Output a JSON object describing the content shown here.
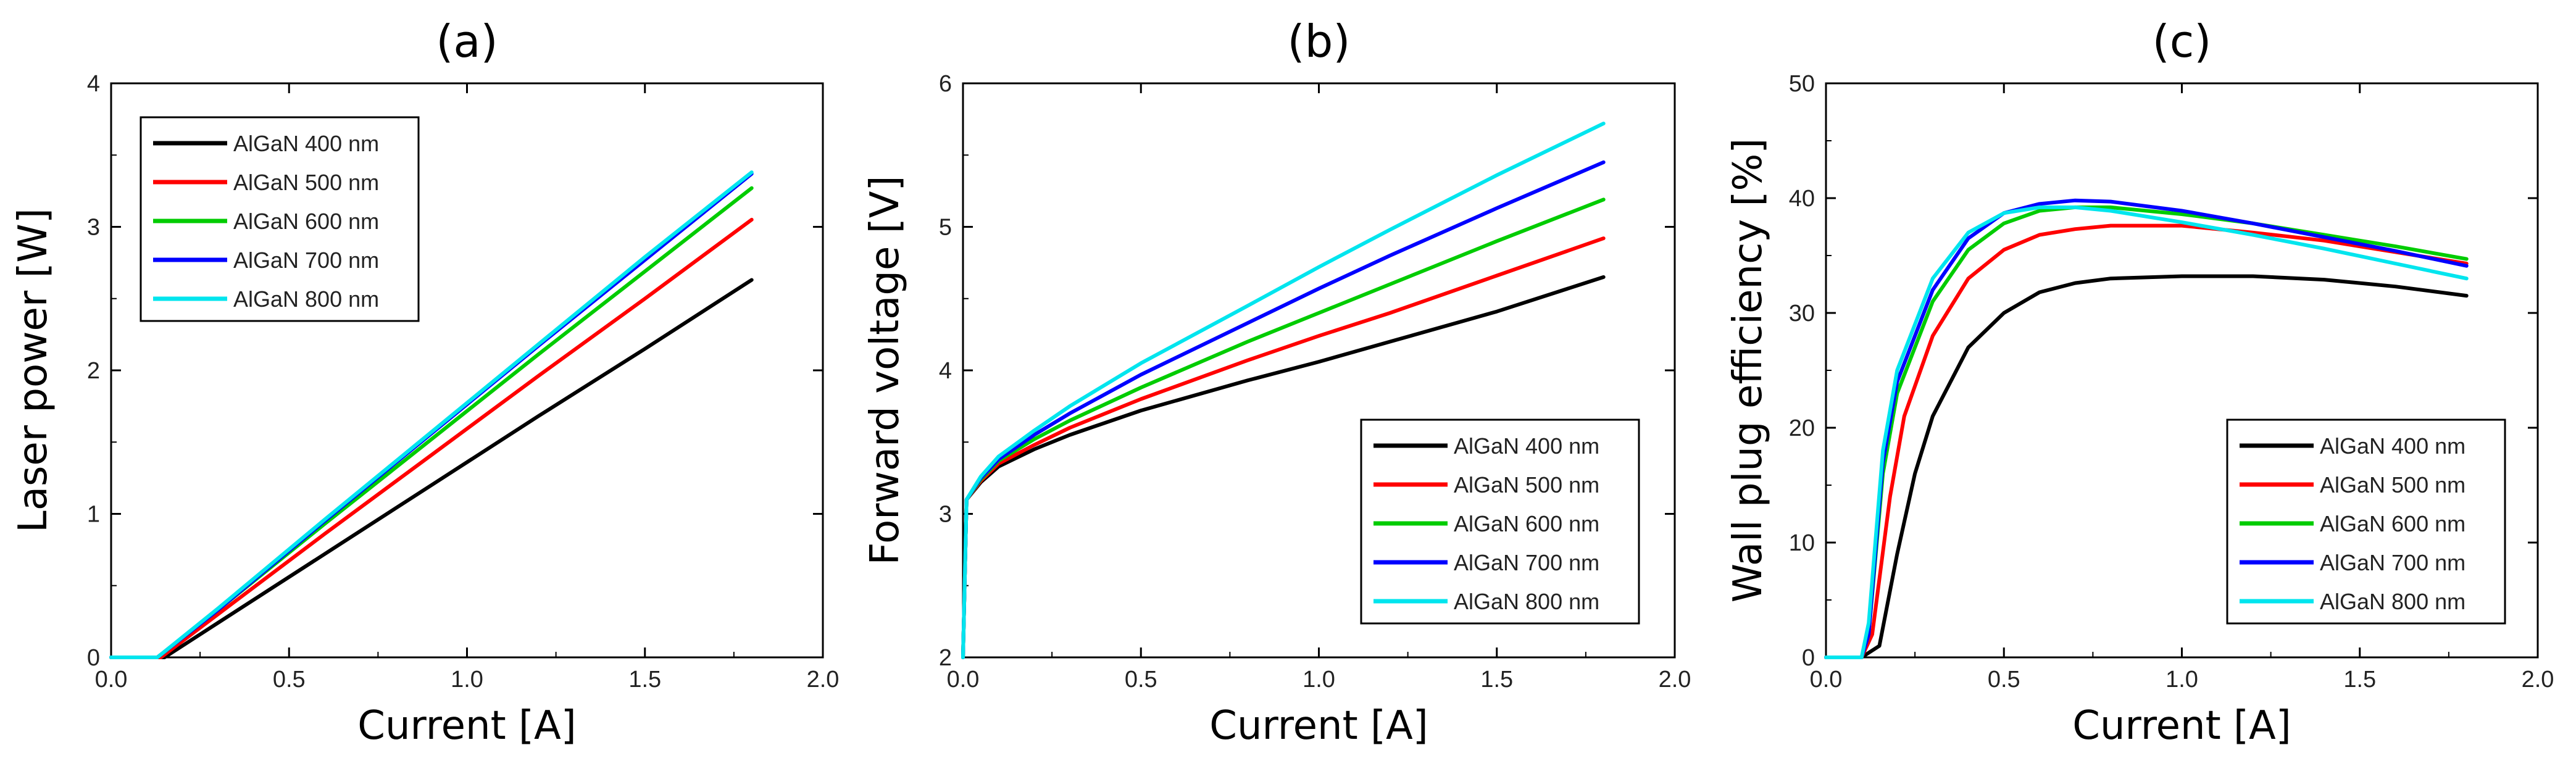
{
  "chart_data": [
    {
      "type": "line",
      "title": "(a)",
      "xlabel": "Current [A]",
      "ylabel": "Laser power [W]",
      "xlim": [
        0,
        2
      ],
      "ylim": [
        0,
        4
      ],
      "xticks": [
        0,
        0.5,
        1,
        1.5,
        2
      ],
      "xtick_labels": [
        "0.0",
        "0.5",
        "1.0",
        "1.5",
        "2.0"
      ],
      "yticks": [
        0,
        1,
        2,
        3,
        4
      ],
      "ytick_labels": [
        "0",
        "1",
        "2",
        "3",
        "4"
      ],
      "legend_position": "top-left",
      "series": [
        {
          "name": "AlGaN 400 nm",
          "color": "#000000",
          "x": [
            0,
            0.15,
            0.3,
            0.6,
            0.9,
            1.2,
            1.5,
            1.8
          ],
          "y": [
            0,
            0,
            0.24,
            0.72,
            1.2,
            1.68,
            2.15,
            2.63
          ]
        },
        {
          "name": "AlGaN 500 nm",
          "color": "#ff0000",
          "x": [
            0,
            0.14,
            0.3,
            0.6,
            0.9,
            1.2,
            1.5,
            1.8
          ],
          "y": [
            0,
            0,
            0.3,
            0.86,
            1.41,
            1.96,
            2.5,
            3.05
          ]
        },
        {
          "name": "AlGaN 600 nm",
          "color": "#00cc00",
          "x": [
            0,
            0.13,
            0.3,
            0.6,
            0.9,
            1.2,
            1.5,
            1.8
          ],
          "y": [
            0,
            0,
            0.33,
            0.93,
            1.52,
            2.11,
            2.69,
            3.27
          ]
        },
        {
          "name": "AlGaN 700 nm",
          "color": "#0000ff",
          "x": [
            0,
            0.13,
            0.3,
            0.6,
            0.9,
            1.2,
            1.5,
            1.8
          ],
          "y": [
            0,
            0,
            0.33,
            0.95,
            1.56,
            2.17,
            2.77,
            3.37
          ]
        },
        {
          "name": "AlGaN 800 nm",
          "color": "#00e5ee",
          "x": [
            0,
            0.13,
            0.3,
            0.6,
            0.9,
            1.2,
            1.5,
            1.8
          ],
          "y": [
            0,
            0,
            0.34,
            0.96,
            1.57,
            2.18,
            2.79,
            3.38
          ]
        }
      ]
    },
    {
      "type": "line",
      "title": "(b)",
      "xlabel": "Current [A]",
      "ylabel": "Forward voltage [V]",
      "xlim": [
        0,
        2
      ],
      "ylim": [
        2,
        6
      ],
      "xticks": [
        0,
        0.5,
        1,
        1.5,
        2
      ],
      "xtick_labels": [
        "0.0",
        "0.5",
        "1.0",
        "1.5",
        "2.0"
      ],
      "yticks": [
        2,
        3,
        4,
        5,
        6
      ],
      "ytick_labels": [
        "2",
        "3",
        "4",
        "5",
        "6"
      ],
      "legend_position": "bottom-right",
      "series": [
        {
          "name": "AlGaN 400 nm",
          "color": "#000000",
          "x": [
            0,
            0.01,
            0.05,
            0.1,
            0.2,
            0.3,
            0.5,
            0.8,
            1.0,
            1.2,
            1.5,
            1.8
          ],
          "y": [
            2,
            3.1,
            3.22,
            3.33,
            3.45,
            3.55,
            3.72,
            3.93,
            4.06,
            4.2,
            4.41,
            4.65
          ]
        },
        {
          "name": "AlGaN 500 nm",
          "color": "#ff0000",
          "x": [
            0,
            0.01,
            0.05,
            0.1,
            0.2,
            0.3,
            0.5,
            0.8,
            1.0,
            1.2,
            1.5,
            1.8
          ],
          "y": [
            2,
            3.1,
            3.23,
            3.35,
            3.48,
            3.6,
            3.8,
            4.07,
            4.24,
            4.4,
            4.66,
            4.92
          ]
        },
        {
          "name": "AlGaN 600 nm",
          "color": "#00cc00",
          "x": [
            0,
            0.01,
            0.05,
            0.1,
            0.2,
            0.3,
            0.5,
            0.8,
            1.0,
            1.2,
            1.5,
            1.8
          ],
          "y": [
            2,
            3.1,
            3.24,
            3.37,
            3.52,
            3.65,
            3.88,
            4.2,
            4.4,
            4.6,
            4.9,
            5.19
          ]
        },
        {
          "name": "AlGaN 700 nm",
          "color": "#0000ff",
          "x": [
            0,
            0.01,
            0.05,
            0.1,
            0.2,
            0.3,
            0.5,
            0.8,
            1.0,
            1.2,
            1.5,
            1.8
          ],
          "y": [
            2,
            3.1,
            3.25,
            3.38,
            3.55,
            3.7,
            3.97,
            4.33,
            4.57,
            4.8,
            5.13,
            5.45
          ]
        },
        {
          "name": "AlGaN 800 nm",
          "color": "#00e5ee",
          "x": [
            0,
            0.01,
            0.05,
            0.1,
            0.2,
            0.3,
            0.5,
            0.8,
            1.0,
            1.2,
            1.5,
            1.8
          ],
          "y": [
            2,
            3.1,
            3.26,
            3.4,
            3.58,
            3.75,
            4.05,
            4.45,
            4.72,
            4.98,
            5.36,
            5.72
          ]
        }
      ]
    },
    {
      "type": "line",
      "title": "(c)",
      "xlabel": "Current [A]",
      "ylabel": "Wall plug efficiency [%]",
      "xlim": [
        0,
        2
      ],
      "ylim": [
        0,
        50
      ],
      "xticks": [
        0,
        0.5,
        1,
        1.5,
        2
      ],
      "xtick_labels": [
        "0.0",
        "0.5",
        "1.0",
        "1.5",
        "2.0"
      ],
      "yticks": [
        0,
        10,
        20,
        30,
        40,
        50
      ],
      "ytick_labels": [
        "0",
        "10",
        "20",
        "30",
        "40",
        "50"
      ],
      "legend_position": "bottom-right",
      "series": [
        {
          "name": "AlGaN 400 nm",
          "color": "#000000",
          "x": [
            0,
            0.1,
            0.15,
            0.2,
            0.25,
            0.3,
            0.4,
            0.5,
            0.6,
            0.7,
            0.8,
            1.0,
            1.2,
            1.4,
            1.6,
            1.8
          ],
          "y": [
            0,
            0,
            1,
            9,
            16,
            21,
            27,
            30,
            31.8,
            32.6,
            33,
            33.2,
            33.2,
            32.9,
            32.3,
            31.5
          ]
        },
        {
          "name": "AlGaN 500 nm",
          "color": "#ff0000",
          "x": [
            0,
            0.1,
            0.13,
            0.18,
            0.22,
            0.3,
            0.4,
            0.5,
            0.6,
            0.7,
            0.8,
            1.0,
            1.2,
            1.4,
            1.6,
            1.8
          ],
          "y": [
            0,
            0,
            2,
            14,
            21,
            28,
            33,
            35.5,
            36.8,
            37.3,
            37.6,
            37.6,
            37,
            36.3,
            35.3,
            34.3
          ]
        },
        {
          "name": "AlGaN 600 nm",
          "color": "#00cc00",
          "x": [
            0,
            0.1,
            0.12,
            0.16,
            0.2,
            0.3,
            0.4,
            0.5,
            0.6,
            0.7,
            0.8,
            1.0,
            1.2,
            1.4,
            1.6,
            1.8
          ],
          "y": [
            0,
            0,
            2,
            16,
            23,
            31,
            35.5,
            37.8,
            38.9,
            39.2,
            39.2,
            38.6,
            37.8,
            36.8,
            35.8,
            34.7
          ]
        },
        {
          "name": "AlGaN 700 nm",
          "color": "#0000ff",
          "x": [
            0,
            0.1,
            0.12,
            0.16,
            0.2,
            0.3,
            0.4,
            0.5,
            0.6,
            0.7,
            0.8,
            1.0,
            1.2,
            1.4,
            1.6,
            1.8
          ],
          "y": [
            0,
            0,
            2,
            17,
            24,
            32,
            36.5,
            38.7,
            39.5,
            39.8,
            39.7,
            38.9,
            37.8,
            36.6,
            35.4,
            34.1
          ]
        },
        {
          "name": "AlGaN 800 nm",
          "color": "#00e5ee",
          "x": [
            0,
            0.1,
            0.12,
            0.16,
            0.2,
            0.3,
            0.4,
            0.5,
            0.6,
            0.7,
            0.8,
            1.0,
            1.2,
            1.4,
            1.6,
            1.8
          ],
          "y": [
            0,
            0,
            3,
            18,
            25,
            33,
            37,
            38.7,
            39.2,
            39.2,
            38.9,
            37.9,
            36.8,
            35.6,
            34.3,
            33
          ]
        }
      ]
    }
  ]
}
